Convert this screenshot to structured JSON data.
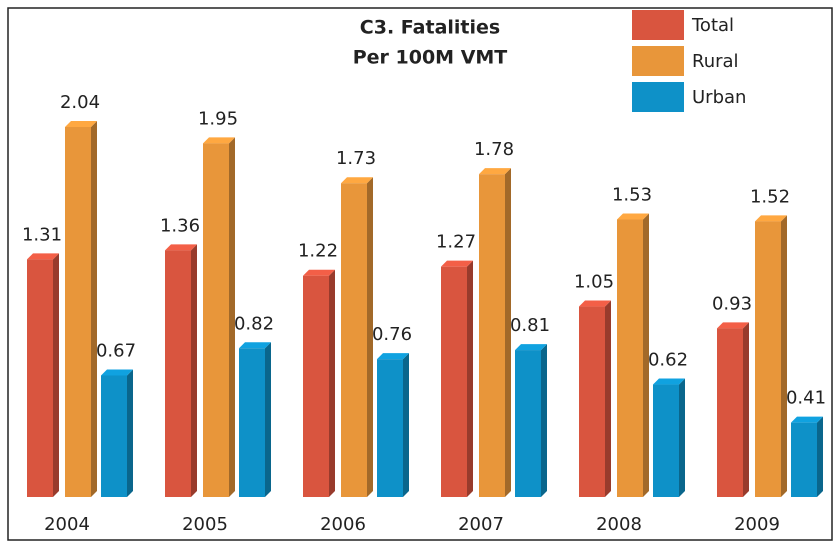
{
  "chart_data": {
    "type": "bar3d",
    "title": "C3. Fatalities",
    "subtitle": "Per 100M VMT",
    "categories": [
      "2004",
      "2005",
      "2006",
      "2007",
      "2008",
      "2009"
    ],
    "series": [
      {
        "name": "Total",
        "color": "#d9553f",
        "values": [
          1.31,
          1.36,
          1.22,
          1.27,
          1.05,
          0.93
        ]
      },
      {
        "name": "Rural",
        "color": "#e8963a",
        "values": [
          2.04,
          1.95,
          1.73,
          1.78,
          1.53,
          1.52
        ]
      },
      {
        "name": "Urban",
        "color": "#0e91c8",
        "values": [
          0.67,
          0.82,
          0.76,
          0.81,
          0.62,
          0.41
        ]
      }
    ],
    "legend": "top-right"
  }
}
